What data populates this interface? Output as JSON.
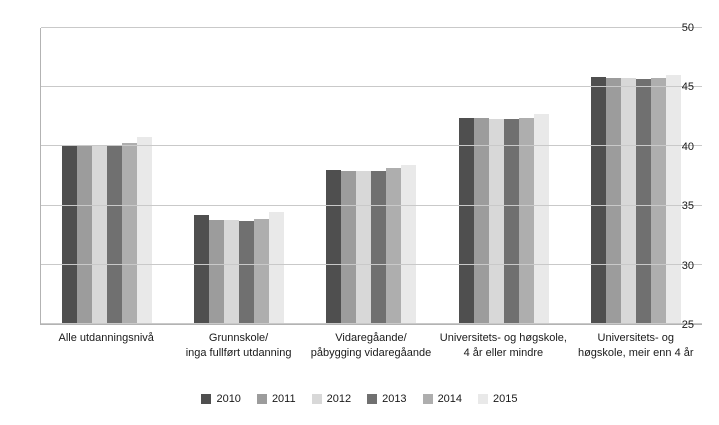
{
  "chart_data": {
    "type": "bar",
    "categories": [
      "Alle utdanningsnivå",
      "Grunnskole/\ninga fullført utdanning",
      "Vidaregåande/\npåbygging vidaregåande",
      "Universitets- og høgskole,\n4 år eller mindre",
      "Universitets- og\nhøgskole, meir enn 4 år"
    ],
    "series": [
      {
        "name": "2010",
        "color": "#4f4f4f",
        "values": [
          40.0,
          34.2,
          38.0,
          42.4,
          45.9
        ]
      },
      {
        "name": "2011",
        "color": "#9c9c9c",
        "values": [
          40.0,
          33.8,
          37.9,
          42.4,
          45.8
        ]
      },
      {
        "name": "2012",
        "color": "#d8d8d8",
        "values": [
          40.0,
          33.8,
          37.9,
          42.3,
          45.8
        ]
      },
      {
        "name": "2013",
        "color": "#707070",
        "values": [
          40.1,
          33.7,
          37.9,
          42.3,
          45.7
        ]
      },
      {
        "name": "2014",
        "color": "#aeaeae",
        "values": [
          40.3,
          33.9,
          38.2,
          42.4,
          45.8
        ]
      },
      {
        "name": "2015",
        "color": "#e9e9e9",
        "values": [
          40.8,
          34.5,
          38.4,
          42.7,
          46.0
        ]
      }
    ],
    "title": "",
    "xlabel": "",
    "ylabel": "",
    "ylim": [
      25,
      50
    ],
    "yticks": [
      25,
      30,
      35,
      40,
      45,
      50
    ],
    "grid": true,
    "legend_position": "bottom"
  }
}
